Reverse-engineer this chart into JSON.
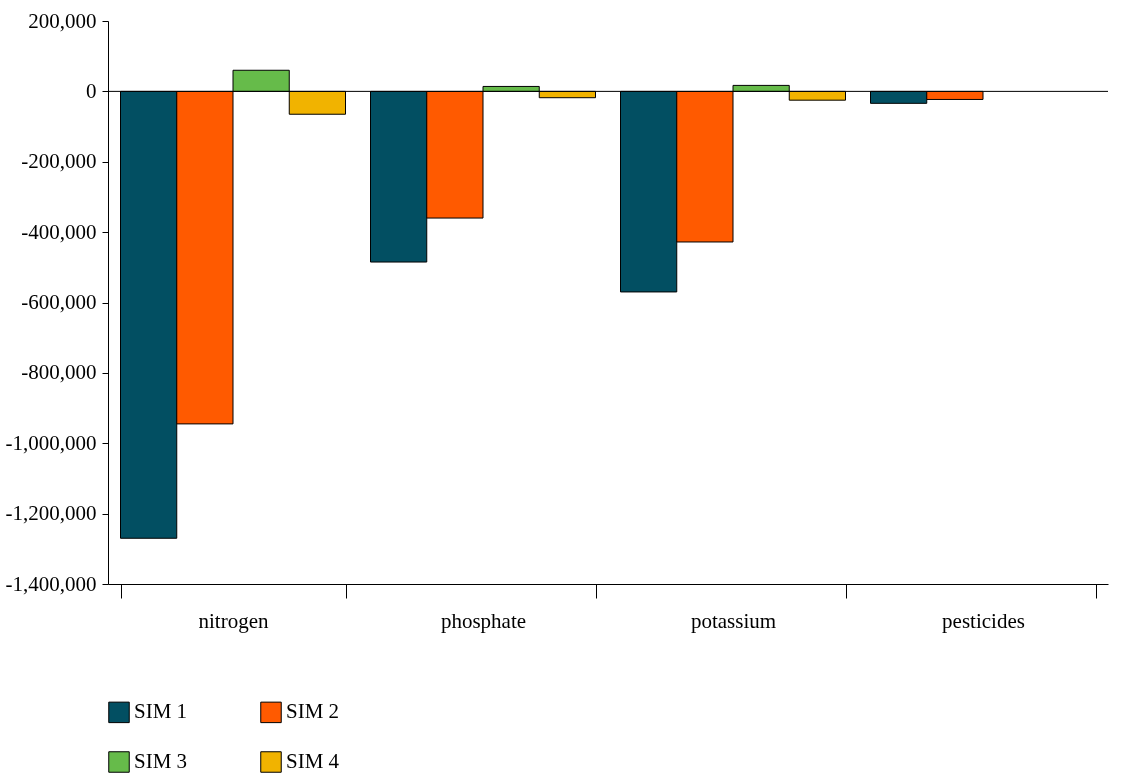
{
  "chart_data": {
    "type": "bar",
    "categories": [
      "nitrogen",
      "phosphate",
      "potassium",
      "pesticides"
    ],
    "series": [
      {
        "name": "SIM 1",
        "color": "#024f62",
        "values": [
          -1270000,
          -485000,
          -570000,
          -34000
        ]
      },
      {
        "name": "SIM 2",
        "color": "#ff5a00",
        "values": [
          -945000,
          -360000,
          -428000,
          -23000
        ]
      },
      {
        "name": "SIM 3",
        "color": "#66bb4a",
        "values": [
          60000,
          14000,
          17000,
          null
        ]
      },
      {
        "name": "SIM 4",
        "color": "#f1b300",
        "values": [
          -65000,
          -18000,
          -25000,
          null
        ]
      }
    ],
    "ylim": [
      -1400000,
      200000
    ],
    "yticks": [
      {
        "value": -1400000,
        "label": "-1,400,000"
      },
      {
        "value": -1200000,
        "label": "-1,200,000"
      },
      {
        "value": -1000000,
        "label": "-1,000,000"
      },
      {
        "value": -800000,
        "label": "-800,000"
      },
      {
        "value": -600000,
        "label": "-600,000"
      },
      {
        "value": -400000,
        "label": "-400,000"
      },
      {
        "value": -200000,
        "label": "-200,000"
      },
      0,
      {
        "value": 200000,
        "label": "200,000"
      }
    ],
    "ref_lines": [
      {
        "axis": "y",
        "value": 0
      }
    ],
    "legend": "bottom"
  }
}
